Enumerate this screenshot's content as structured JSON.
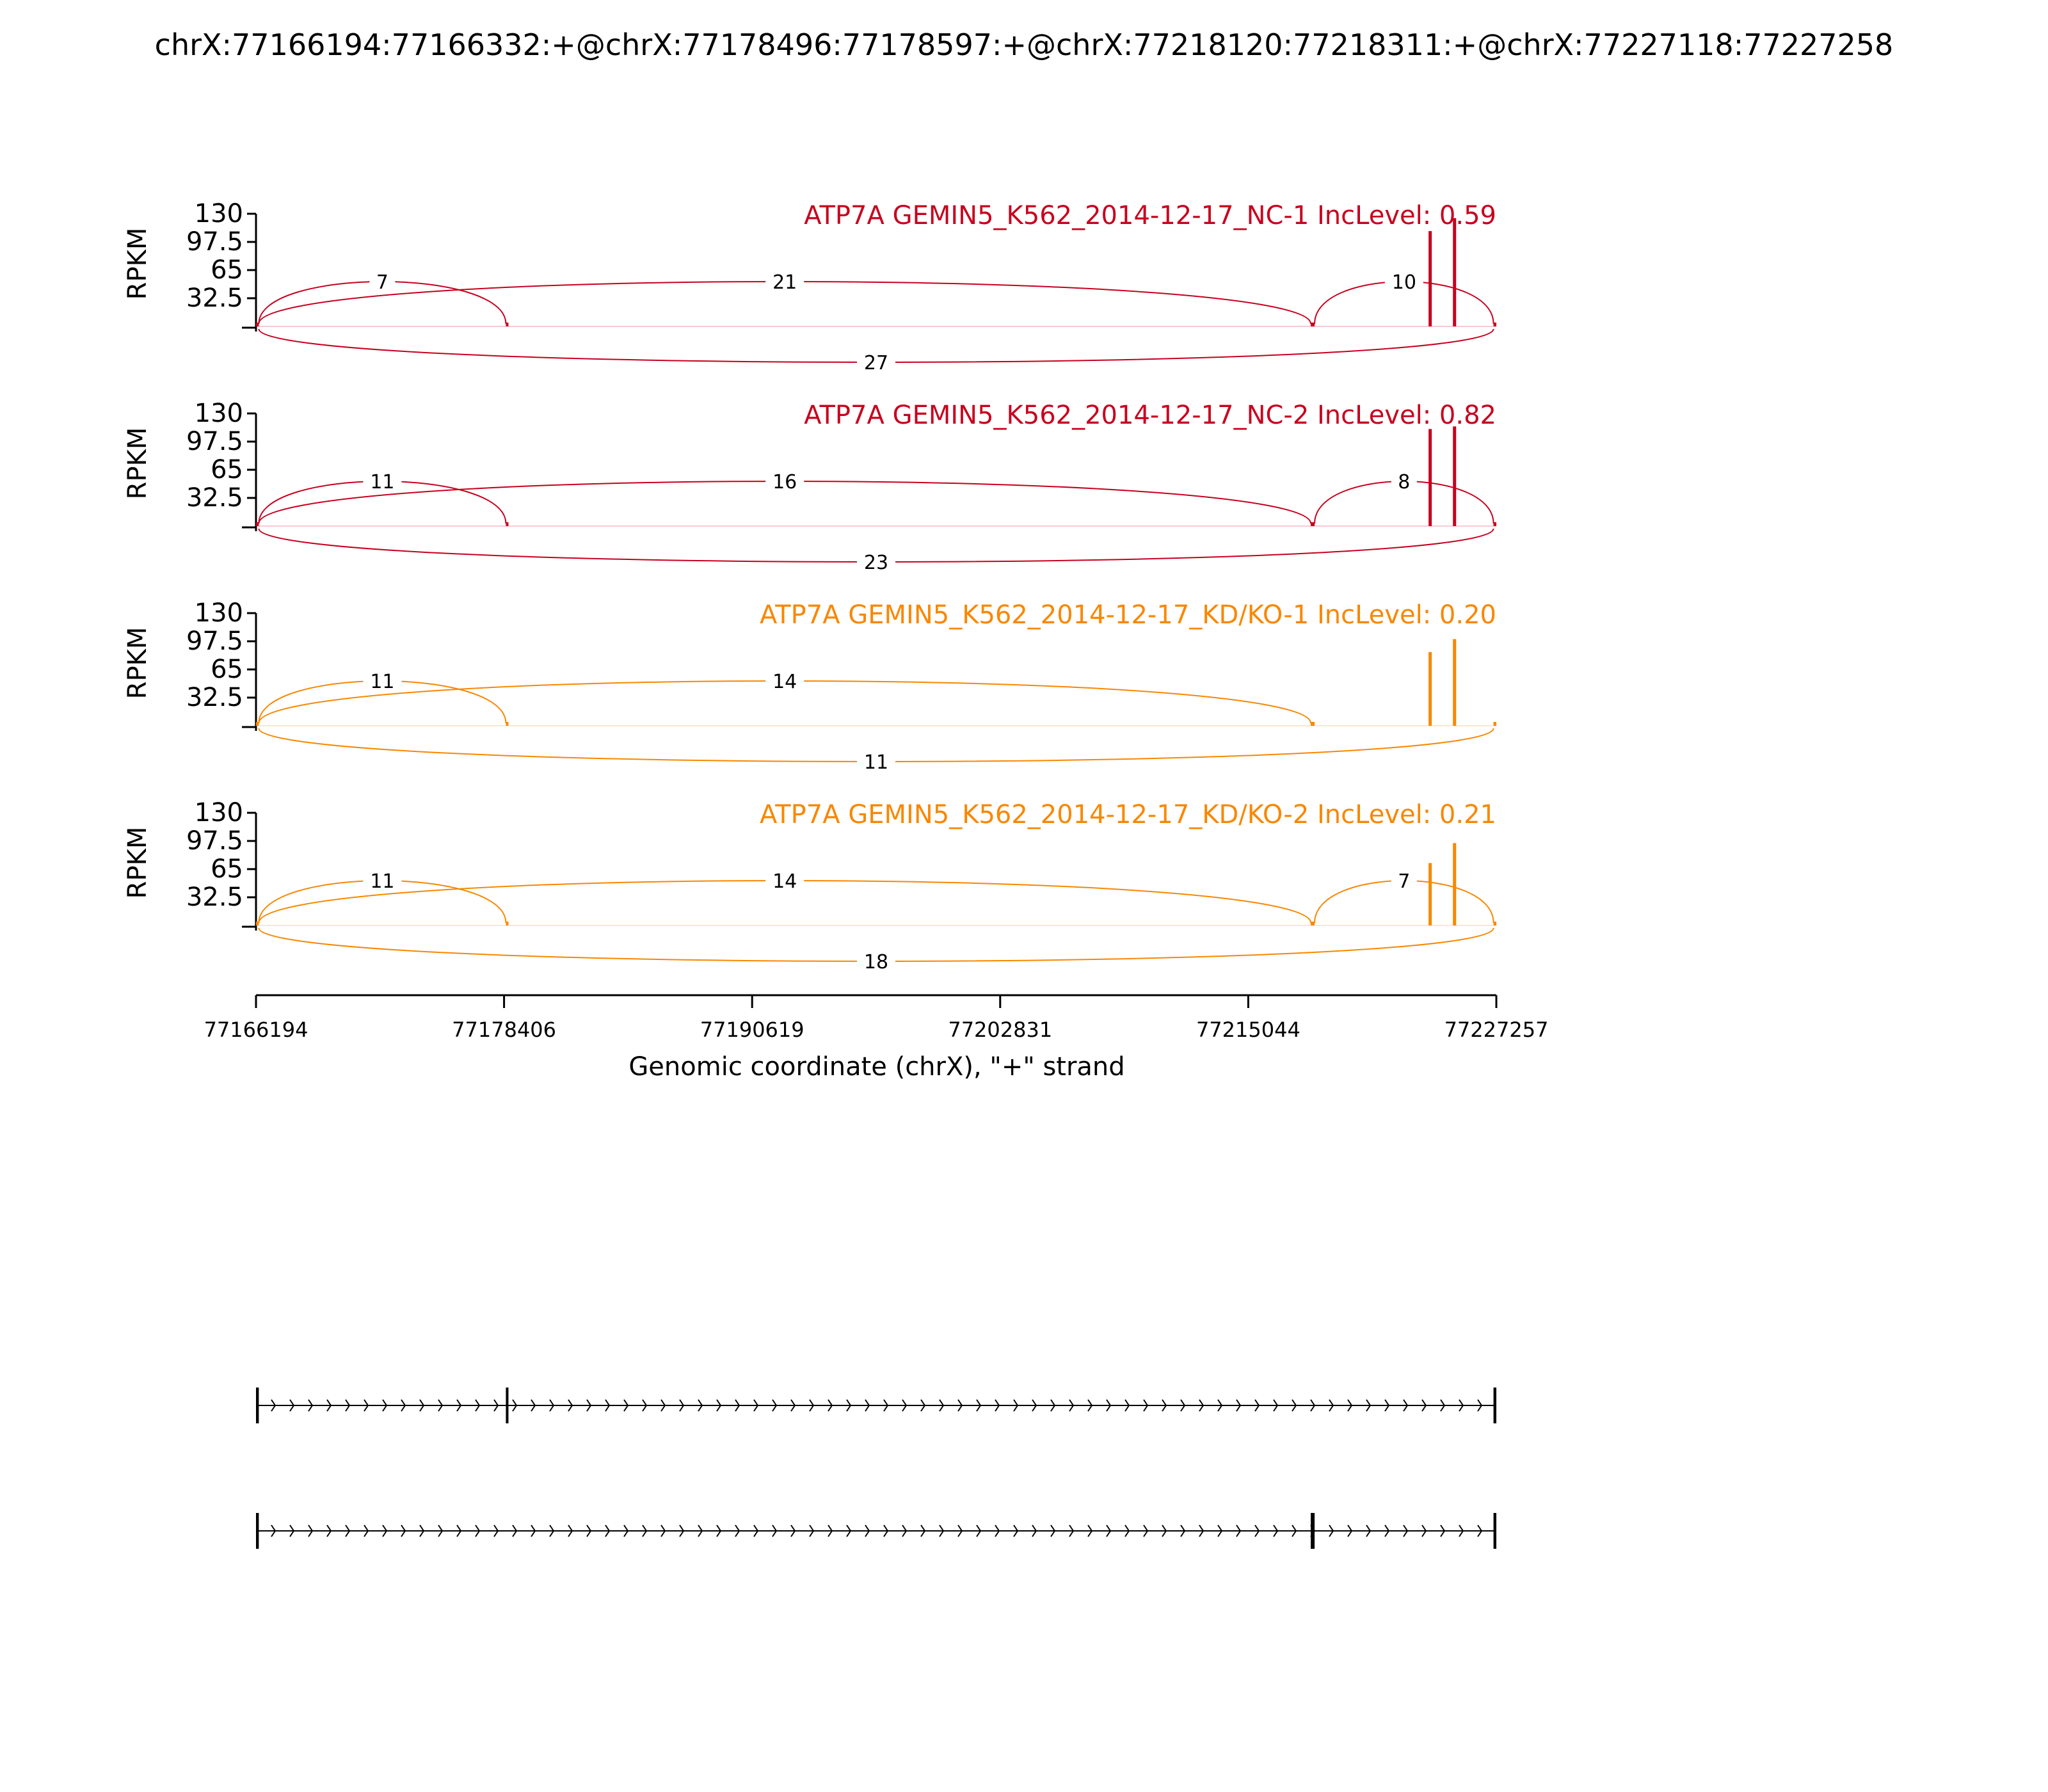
{
  "title": "chrX:77166194:77166332:+@chrX:77178496:77178597:+@chrX:77218120:77218311:+@chrX:77227118:77227258",
  "colors": {
    "nc": "#c8001e",
    "kd": "#f98700",
    "axis": "#000000"
  },
  "chart_data": {
    "type": "area",
    "title": "chrX:77166194:77166332:+@chrX:77178496:77178597:+@chrX:77218120:77218311:+@chrX:77227118:77227258",
    "xlabel": "Genomic coordinate (chrX), \"+\" strand",
    "ylabel": "RPKM",
    "xlim": [
      77166194,
      77227257
    ],
    "ylim": [
      0,
      130
    ],
    "xticks": [
      77166194,
      77178406,
      77190619,
      77202831,
      77215044,
      77227257
    ],
    "xtick_labels": [
      "77166194",
      "77178406",
      "77190619",
      "77202831",
      "77215044",
      "77227257"
    ],
    "yticks": [
      32.5,
      65,
      97.5,
      130
    ],
    "ytick_labels": [
      "32.5",
      "65",
      "97.5",
      "130"
    ],
    "exons": [
      {
        "start": 77166194,
        "end": 77166332
      },
      {
        "start": 77178496,
        "end": 77178597
      },
      {
        "start": 77218120,
        "end": 77218311
      },
      {
        "start": 77227118,
        "end": 77227258
      }
    ],
    "panels": [
      {
        "label": "ATP7A GEMIN5_K562_2014-12-17_NC-1 IncLevel: 0.59",
        "color": "nc",
        "peaks": [
          {
            "x": 77224000,
            "y": 110
          },
          {
            "x": 77225200,
            "y": 125
          }
        ],
        "junctions": [
          {
            "start": 77166332,
            "end": 77178496,
            "count": "7",
            "side": "above"
          },
          {
            "start": 77166332,
            "end": 77218120,
            "count": "21",
            "side": "above"
          },
          {
            "start": 77218311,
            "end": 77227118,
            "count": "10",
            "side": "above"
          },
          {
            "start": 77166332,
            "end": 77227118,
            "count": "27",
            "side": "below"
          }
        ]
      },
      {
        "label": "ATP7A GEMIN5_K562_2014-12-17_NC-2 IncLevel: 0.82",
        "color": "nc",
        "peaks": [
          {
            "x": 77224000,
            "y": 112
          },
          {
            "x": 77225200,
            "y": 115
          }
        ],
        "junctions": [
          {
            "start": 77166332,
            "end": 77178496,
            "count": "11",
            "side": "above"
          },
          {
            "start": 77166332,
            "end": 77218120,
            "count": "16",
            "side": "above"
          },
          {
            "start": 77218311,
            "end": 77227118,
            "count": "8",
            "side": "above"
          },
          {
            "start": 77166332,
            "end": 77227118,
            "count": "23",
            "side": "below"
          }
        ]
      },
      {
        "label": "ATP7A GEMIN5_K562_2014-12-17_KD/KO-1 IncLevel: 0.20",
        "color": "kd",
        "peaks": [
          {
            "x": 77224000,
            "y": 85
          },
          {
            "x": 77225200,
            "y": 100
          }
        ],
        "junctions": [
          {
            "start": 77166332,
            "end": 77178496,
            "count": "11",
            "side": "above"
          },
          {
            "start": 77166332,
            "end": 77218120,
            "count": "14",
            "side": "above"
          },
          {
            "start": 77166332,
            "end": 77227118,
            "count": "11",
            "side": "below"
          }
        ]
      },
      {
        "label": "ATP7A GEMIN5_K562_2014-12-17_KD/KO-2 IncLevel: 0.21",
        "color": "kd",
        "peaks": [
          {
            "x": 77224000,
            "y": 72
          },
          {
            "x": 77225200,
            "y": 95
          }
        ],
        "junctions": [
          {
            "start": 77166332,
            "end": 77178496,
            "count": "11",
            "side": "above"
          },
          {
            "start": 77166332,
            "end": 77218120,
            "count": "14",
            "side": "above"
          },
          {
            "start": 77218311,
            "end": 77227118,
            "count": "7",
            "side": "above"
          },
          {
            "start": 77166332,
            "end": 77227118,
            "count": "18",
            "side": "below"
          }
        ]
      }
    ],
    "isoforms": [
      {
        "exons": [
          0,
          1,
          3
        ]
      },
      {
        "exons": [
          0,
          2,
          3
        ]
      }
    ]
  }
}
